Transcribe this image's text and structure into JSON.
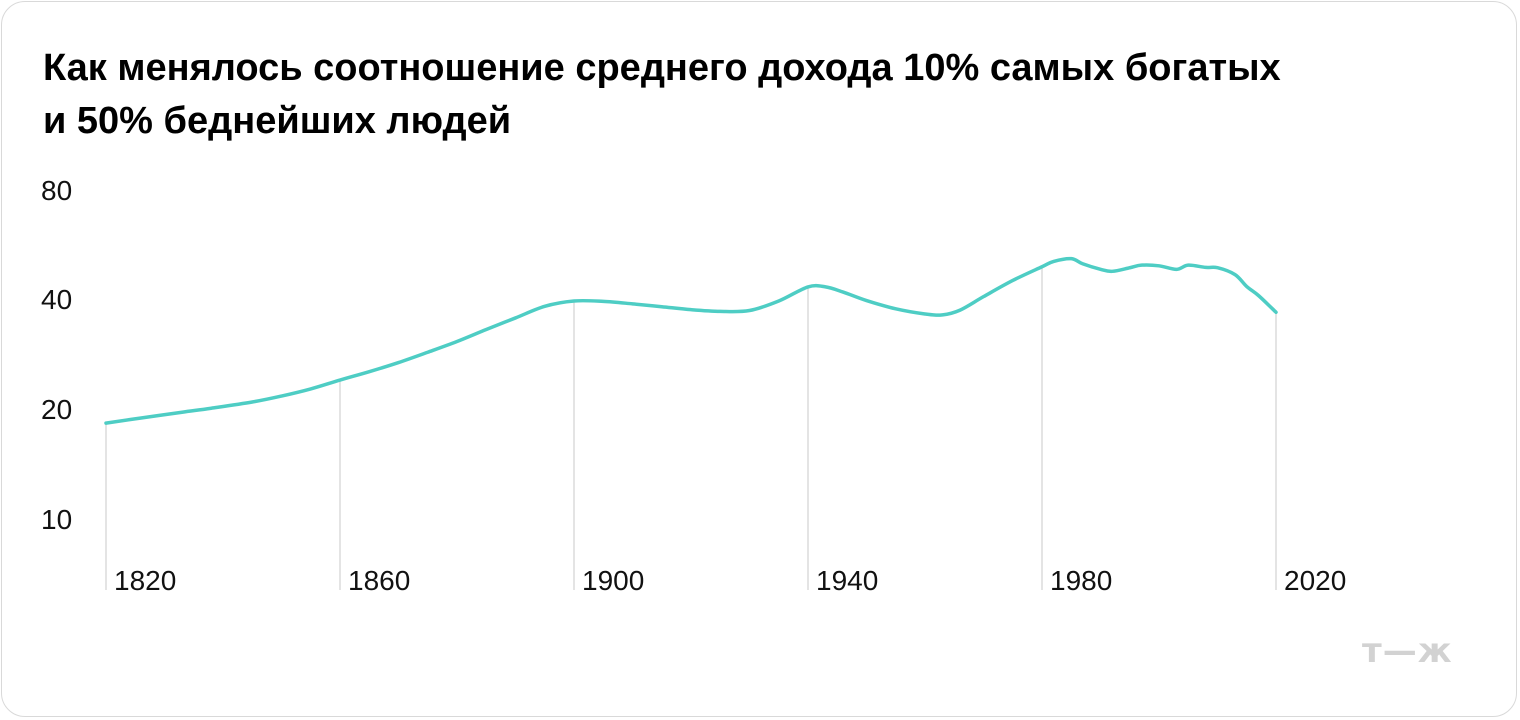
{
  "chart_data": {
    "type": "line",
    "title_lines": [
      "Как менялось соотношение среднего дохода 10% самых богатых",
      "и 50% беднейших людей"
    ],
    "xlabel": "",
    "ylabel": "",
    "y_scale": "log",
    "y_ticks": [
      80,
      40,
      20,
      10
    ],
    "x_ticks": [
      1820,
      1860,
      1900,
      1940,
      1980,
      2020
    ],
    "xlim": [
      1820,
      2020
    ],
    "grid": "vertical lines at data points 1820, 1860, 1900, 1940, 1980, 2020 region",
    "series": [
      {
        "color": "#4ecdc4",
        "x": [
          1820,
          1826,
          1833,
          1838,
          1845,
          1850,
          1855,
          1860,
          1865,
          1870,
          1875,
          1880,
          1885,
          1890,
          1895,
          1900,
          1905,
          1910,
          1915,
          1920,
          1925,
          1930,
          1935,
          1940,
          1943,
          1946,
          1950,
          1955,
          1960,
          1963,
          1966,
          1970,
          1975,
          1980,
          1982,
          1985,
          1987,
          1990,
          1992,
          1995,
          1997,
          2000,
          2003,
          2005,
          2008,
          2010,
          2013,
          2015,
          2017,
          2020
        ],
        "y": [
          18.3,
          18.9,
          19.6,
          20.1,
          20.9,
          21.7,
          22.7,
          24.0,
          25.3,
          26.8,
          28.6,
          30.6,
          33.0,
          35.5,
          38.2,
          39.5,
          39.4,
          38.8,
          38.1,
          37.4,
          37.0,
          37.2,
          39.5,
          43.2,
          43.2,
          41.8,
          39.6,
          37.6,
          36.4,
          36.2,
          37.3,
          40.6,
          45.0,
          49.1,
          50.8,
          51.7,
          50.0,
          48.3,
          47.7,
          48.8,
          49.6,
          49.4,
          48.3,
          49.6,
          48.9,
          48.8,
          46.7,
          43.3,
          40.9,
          36.8
        ]
      }
    ]
  },
  "logo_text": "т—ж"
}
